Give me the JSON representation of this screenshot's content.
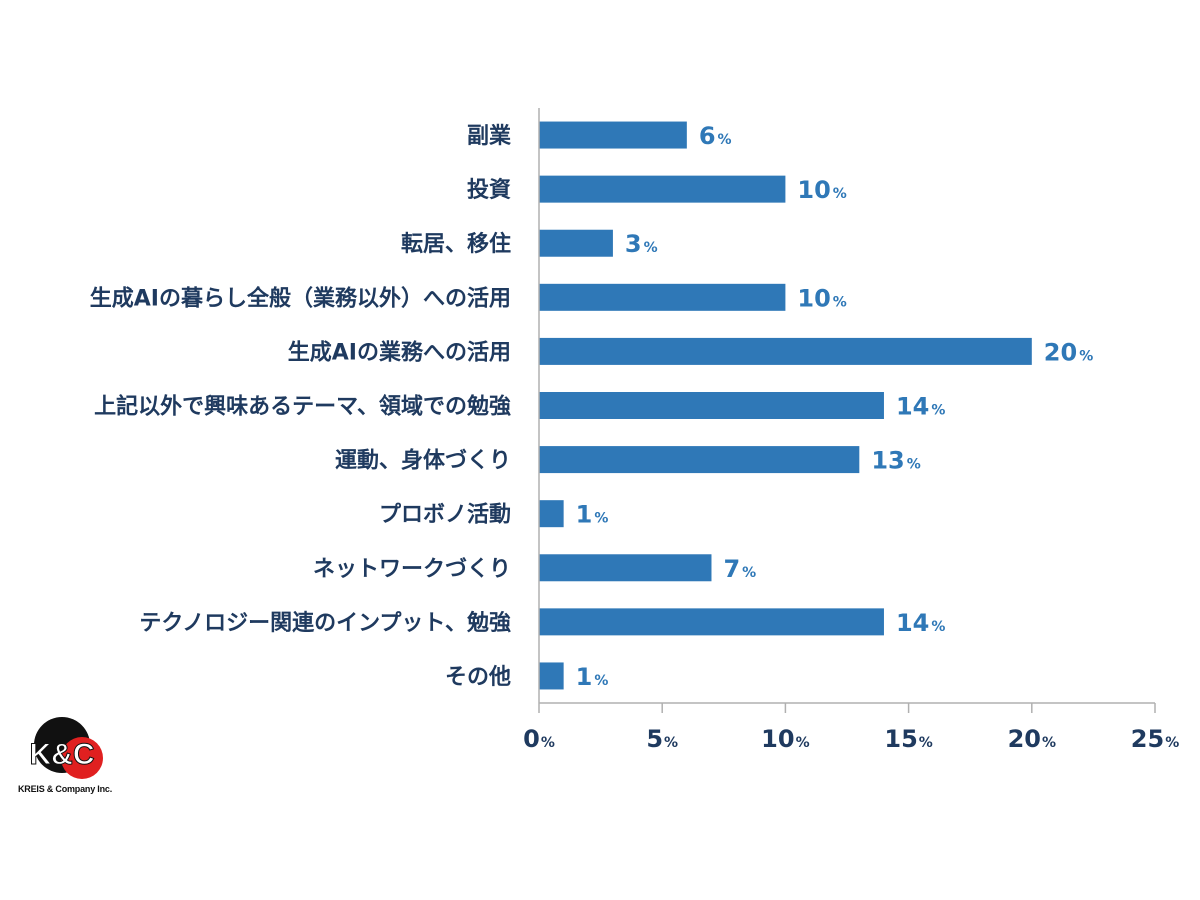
{
  "chart_data": {
    "type": "bar",
    "orientation": "horizontal",
    "categories": [
      "副業",
      "投資",
      "転居、移住",
      "生成AIの暮らし全般（業務以外）への活用",
      "生成AIの業務への活用",
      "上記以外で興味あるテーマ、領域での勉強",
      "運動、身体づくり",
      "プロボノ活動",
      "ネットワークづくり",
      "テクノロジー関連のインプット、勉強",
      "その他"
    ],
    "values": [
      6,
      10,
      3,
      10,
      20,
      14,
      13,
      1,
      7,
      14,
      1
    ],
    "value_suffix": "%",
    "xlim": [
      0,
      25
    ],
    "xticks": [
      0,
      5,
      10,
      15,
      20,
      25
    ],
    "bar_color": "#2f78b7",
    "grid": false,
    "legend": "none"
  },
  "logo": {
    "mark": "K&C",
    "company": "KREIS & Company Inc.",
    "colors": {
      "dark": "#111111",
      "red": "#e02020"
    }
  }
}
